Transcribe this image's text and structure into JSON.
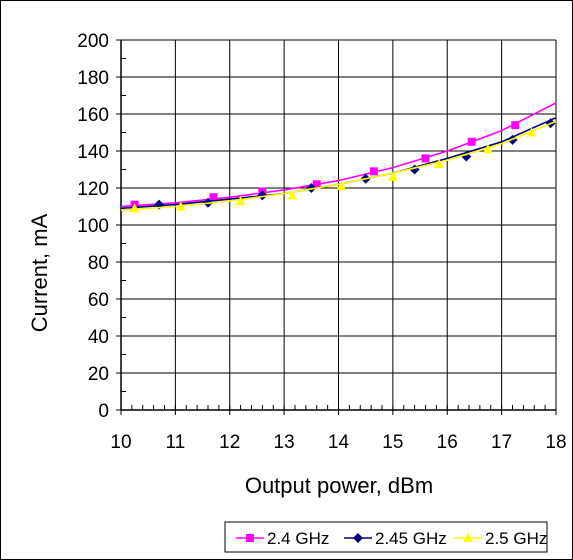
{
  "chart_data": {
    "type": "line",
    "title": "",
    "xlabel": "Output power, dBm",
    "ylabel": "Current, mA",
    "xlim": [
      10,
      18
    ],
    "ylim": [
      0,
      200
    ],
    "xticks": [
      10,
      11,
      12,
      13,
      14,
      15,
      16,
      17,
      18
    ],
    "yticks": [
      0,
      20,
      40,
      60,
      80,
      100,
      120,
      140,
      160,
      180,
      200
    ],
    "grid": true,
    "legend_position": "bottom",
    "series": [
      {
        "name": "2.4 GHz",
        "color": "#ff00ff",
        "marker": "square",
        "x": [
          10.25,
          11.7,
          12.6,
          13.6,
          14.65,
          15.6,
          16.45,
          17.25
        ],
        "y": [
          111,
          115,
          118,
          122,
          129,
          136,
          145,
          154
        ],
        "trend": [
          [
            10,
            110
          ],
          [
            11,
            112
          ],
          [
            12,
            115
          ],
          [
            13,
            119
          ],
          [
            14,
            124
          ],
          [
            15,
            131
          ],
          [
            16,
            140
          ],
          [
            17,
            151
          ],
          [
            18,
            166
          ]
        ]
      },
      {
        "name": "2.45 GHz",
        "color": "#000080",
        "marker": "diamond",
        "x": [
          10.7,
          11.6,
          12.6,
          13.5,
          14.5,
          15.4,
          16.35,
          17.2,
          17.9
        ],
        "y": [
          111,
          112,
          116,
          120,
          125,
          130,
          137,
          146,
          155
        ],
        "trend": [
          [
            10,
            109
          ],
          [
            11,
            111
          ],
          [
            12,
            114
          ],
          [
            13,
            117
          ],
          [
            14,
            122
          ],
          [
            15,
            128
          ],
          [
            16,
            136
          ],
          [
            17,
            145
          ],
          [
            18,
            158
          ]
        ]
      },
      {
        "name": "2.5 GHz",
        "color": "#ffff00",
        "marker": "triangle",
        "x": [
          10.25,
          11.1,
          12.2,
          13.15,
          14.05,
          15.0,
          15.85,
          16.75,
          17.55
        ],
        "y": [
          109,
          110,
          113,
          116,
          121,
          126,
          133,
          141,
          150
        ],
        "trend": [
          [
            10,
            108
          ],
          [
            11,
            110
          ],
          [
            12,
            113
          ],
          [
            13,
            117
          ],
          [
            14,
            122
          ],
          [
            15,
            128
          ],
          [
            16,
            135
          ],
          [
            17,
            144
          ],
          [
            18,
            156
          ]
        ]
      }
    ]
  }
}
